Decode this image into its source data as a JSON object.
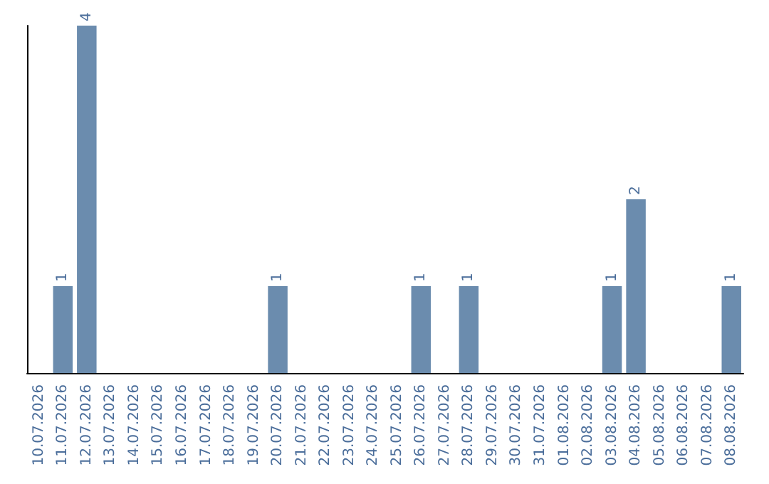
{
  "chart_data": {
    "type": "bar",
    "categories": [
      "10.07.2026",
      "11.07.2026",
      "12.07.2026",
      "13.07.2026",
      "14.07.2026",
      "15.07.2026",
      "16.07.2026",
      "17.07.2026",
      "18.07.2026",
      "19.07.2026",
      "20.07.2026",
      "21.07.2026",
      "22.07.2026",
      "23.07.2026",
      "24.07.2026",
      "25.07.2026",
      "26.07.2026",
      "27.07.2026",
      "28.07.2026",
      "29.07.2026",
      "30.07.2026",
      "31.07.2026",
      "01.08.2026",
      "02.08.2026",
      "03.08.2026",
      "04.08.2026",
      "05.08.2026",
      "06.08.2026",
      "07.08.2026",
      "08.08.2026"
    ],
    "values": [
      null,
      1,
      4,
      null,
      null,
      null,
      null,
      null,
      null,
      null,
      1,
      null,
      null,
      null,
      null,
      null,
      1,
      null,
      1,
      null,
      null,
      null,
      null,
      null,
      1,
      2,
      null,
      null,
      null,
      1
    ],
    "color": "#6b8cae",
    "data_labels": true,
    "tick_labels": "x",
    "grid": false
  }
}
